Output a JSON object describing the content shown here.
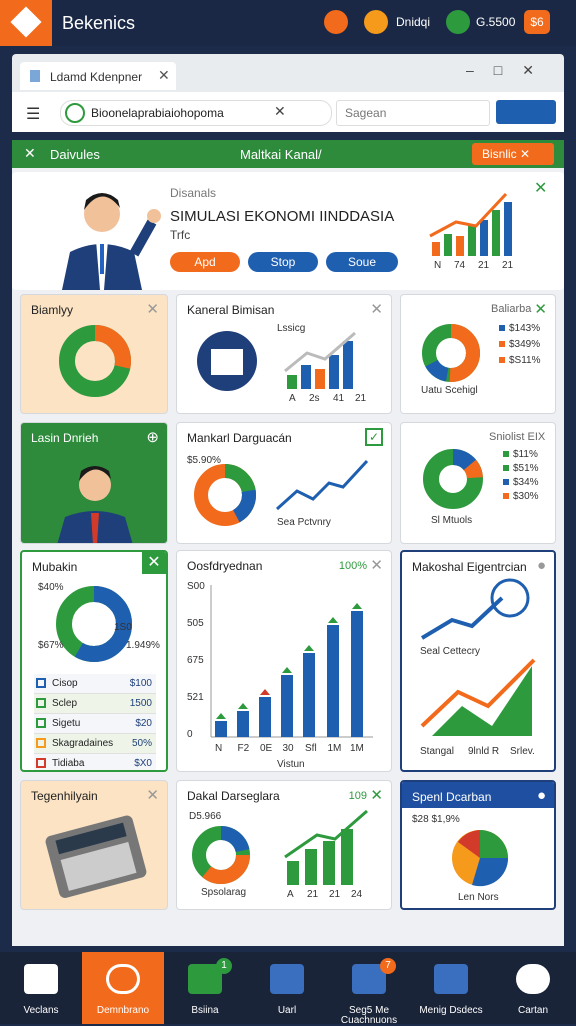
{
  "topbar": {
    "brand": "Bekenics",
    "items": [
      "Dnidqi",
      "G.5500",
      "$6"
    ]
  },
  "browser": {
    "tab": "Ldamd Kdenpner",
    "address": "Bioonelaprabiaiohopoma",
    "search": "Sagean"
  },
  "header": {
    "left": "Daivules",
    "center": "Maltkai Kanal/",
    "button": "Bisnlic"
  },
  "hero": {
    "kicker": "Disanals",
    "title": "SIMULASI EKONOMI IINDDASIA",
    "subtitle": "Trfc",
    "buttons": [
      "Apd",
      "Stop",
      "Soue"
    ],
    "chart_labels": [
      "N",
      "74",
      "21",
      "21"
    ]
  },
  "cards": [
    {
      "title": "Biamlyy"
    },
    {
      "title": "Kaneral Bimisan",
      "label": "Lssicg",
      "axis": [
        "A",
        "2s",
        "41",
        "21"
      ]
    },
    {
      "title": "Baliarba",
      "legend": [
        "$143%",
        "$349%",
        "$S11%"
      ],
      "caption": "Uatu Scehigl"
    },
    {
      "title": "Lasin Dnrieh"
    },
    {
      "title": "Mankarl Darguacán",
      "label": "$5.90%",
      "caption": "Sea Pctvnry"
    },
    {
      "title": "Sniolist EIX",
      "legend": [
        "$11%",
        "$51%",
        "$34%",
        "$30%"
      ],
      "caption": "Sl Mtuols"
    },
    {
      "title": "Mubakin",
      "donut": [
        "$40%",
        "$67%",
        "1.949%",
        "1S0"
      ],
      "rows": [
        [
          "Cisop",
          "$100"
        ],
        [
          "Sclep",
          "1500"
        ],
        [
          "Sigetu",
          "$20"
        ],
        [
          "Skagradaines",
          "50%"
        ],
        [
          "Tidiaba",
          "$X0"
        ]
      ]
    },
    {
      "title": "Oosfdryednan",
      "badge": "100%",
      "yaxis": [
        "S00",
        "505",
        "675",
        "521",
        "0"
      ],
      "xaxis": [
        "N",
        "F2",
        "0E",
        "30",
        "Sfl",
        "1M",
        "1M"
      ],
      "caption": "Vistun"
    },
    {
      "title": "Makoshal Eigentrcian",
      "label": "Seal Cettecry",
      "axis": [
        "Stangal",
        "9lnld R",
        "Srlev."
      ]
    },
    {
      "title": "Tegenhilyain"
    },
    {
      "title": "Dakal Darseglara",
      "badge": "109",
      "label": "D5.966",
      "caption": "Spsolarag",
      "axis": [
        "A",
        "21",
        "21",
        "24"
      ]
    },
    {
      "title": "Spenl Dcarban",
      "label": "$28 $1,9%",
      "caption": "Len Nors"
    }
  ],
  "nav": {
    "items": [
      "Veclans",
      "Demnbrano",
      "Bsiina",
      "Uarl",
      "Seg5 Me Cuachnuons",
      "Menig Dsdecs",
      "Cartan"
    ],
    "badges": [
      "1",
      "7"
    ]
  }
}
